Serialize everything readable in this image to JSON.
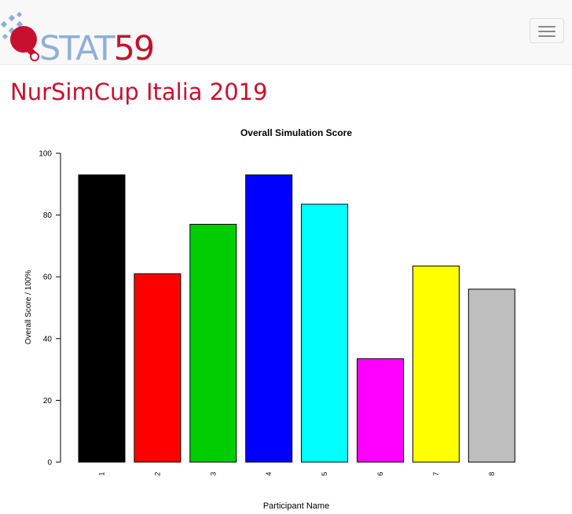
{
  "brand": {
    "logo_stat": "STAT",
    "logo_num": "59",
    "accent_color": "#c8102e",
    "secondary_color": "#8fb0d4"
  },
  "nav": {
    "toggle_icon": "hamburger-icon"
  },
  "page": {
    "title": "NurSimCup Italia 2019"
  },
  "chart_data": {
    "type": "bar",
    "title": "Overall Simulation Score",
    "xlabel": "Participant Name",
    "ylabel": "Overall Score / 100%",
    "categories": [
      "1",
      "2",
      "3",
      "4",
      "5",
      "6",
      "7",
      "8"
    ],
    "values": [
      93,
      61,
      77,
      93,
      83.5,
      33.5,
      63.5,
      56
    ],
    "colors": [
      "#000000",
      "#ff0000",
      "#00cd00",
      "#0000ff",
      "#00ffff",
      "#ff00ff",
      "#ffff00",
      "#bebebe"
    ],
    "ylim": [
      0,
      100
    ],
    "yticks": [
      "0",
      "20",
      "40",
      "60",
      "80",
      "100"
    ],
    "grid": false,
    "legend": "none"
  }
}
